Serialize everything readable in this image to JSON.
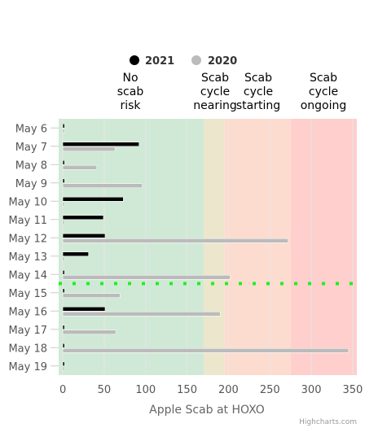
{
  "chart_data": {
    "type": "bar",
    "orientation": "horizontal",
    "categories": [
      "May 6",
      "May 7",
      "May 8",
      "May 9",
      "May 10",
      "May 11",
      "May 12",
      "May 13",
      "May 14",
      "May 15",
      "May 16",
      "May 17",
      "May 18",
      "May 19"
    ],
    "series": [
      {
        "name": "2021",
        "color": "#000000",
        "values": [
          2,
          92,
          2,
          2,
          73,
          49,
          51,
          31,
          2,
          2,
          51,
          2,
          2,
          2
        ]
      },
      {
        "name": "2020",
        "color": "#bbbbbb",
        "values": [
          2,
          63,
          41,
          96,
          2,
          2,
          272,
          2,
          202,
          69,
          190,
          64,
          345,
          2
        ]
      }
    ],
    "xlabel": "Apple Scab at HOXO",
    "xlim": [
      -5,
      355
    ],
    "xticks": [
      0,
      50,
      100,
      150,
      200,
      250,
      300,
      350
    ],
    "grid": true,
    "legend_position": "top",
    "plot_bands": [
      {
        "from": -5,
        "to": 170,
        "color": "#d0e9d6",
        "label": [
          "No",
          "scab",
          "risk"
        ]
      },
      {
        "from": 170,
        "to": 195,
        "color": "#ece6cd",
        "label": [
          "Scab",
          "cycle",
          "nearing"
        ]
      },
      {
        "from": 195,
        "to": 275,
        "color": "#fddcd0",
        "label": [
          "Scab",
          "cycle",
          "starting"
        ]
      },
      {
        "from": 275,
        "to": 355,
        "color": "#fecfcc",
        "label": [
          "Scab",
          "cycle",
          "ongoing"
        ]
      }
    ],
    "marker_line": {
      "between": [
        "May 14",
        "May 15"
      ],
      "color": "#22ee22",
      "style": "dotted"
    }
  },
  "credits": "Highcharts.com"
}
